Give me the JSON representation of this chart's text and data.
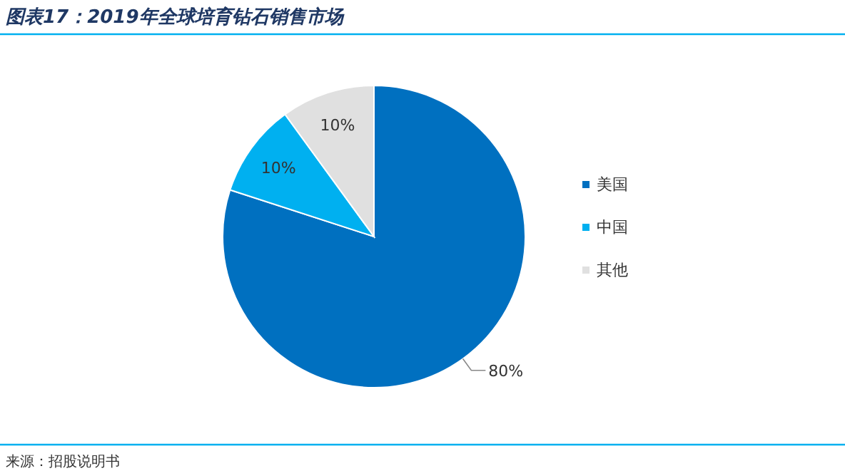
{
  "chart_data": {
    "type": "pie",
    "title": "图表17：2019年全球培育钻石销售市场",
    "categories": [
      "美国",
      "中国",
      "其他"
    ],
    "values": [
      80,
      10,
      10
    ],
    "colors": [
      "#0070c0",
      "#00b0f0",
      "#e0e0e0"
    ],
    "value_labels": [
      "80%",
      "10%",
      "10%"
    ],
    "legend": "right",
    "annotations": [
      "来源：招股说明书"
    ]
  }
}
